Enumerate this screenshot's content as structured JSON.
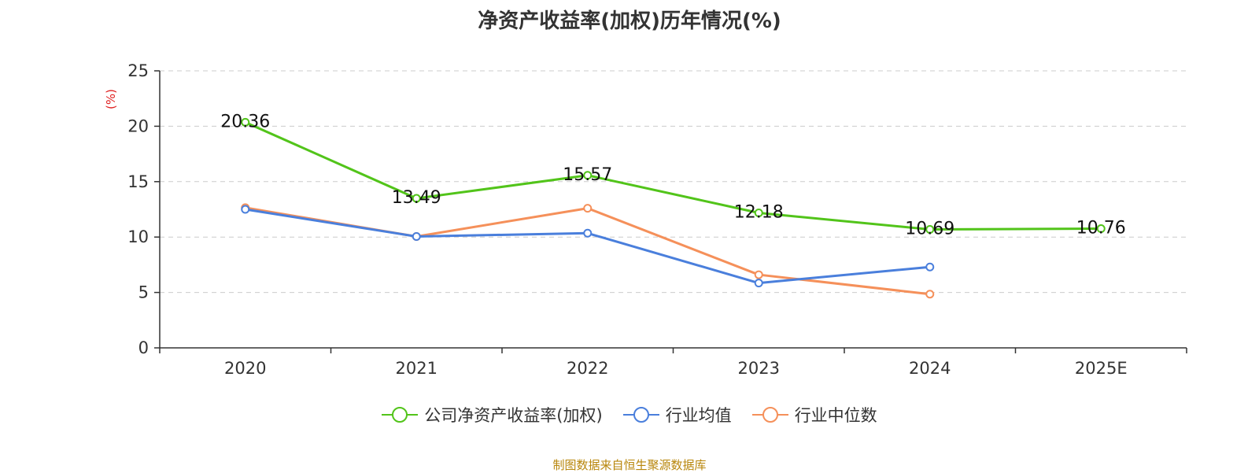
{
  "chart_data": {
    "type": "line",
    "title": "净资产收益率(加权)历年情况(%)",
    "ylabel": "(%)",
    "xlabel": "",
    "categories": [
      "2020",
      "2021",
      "2022",
      "2023",
      "2024",
      "2025E"
    ],
    "ylim": [
      0,
      25
    ],
    "yticks": [
      0,
      5,
      10,
      15,
      20,
      25
    ],
    "grid": true,
    "legend_position": "bottom",
    "series": [
      {
        "name": "公司净资产收益率(加权)",
        "color": "#52c41a",
        "values": [
          20.36,
          13.49,
          15.57,
          12.18,
          10.69,
          10.76
        ],
        "show_labels": true
      },
      {
        "name": "行业均值",
        "color": "#4a7fdc",
        "values": [
          12.5,
          10.05,
          10.35,
          5.85,
          7.3,
          null
        ],
        "show_labels": false
      },
      {
        "name": "行业中位数",
        "color": "#f5905a",
        "values": [
          12.65,
          10.05,
          12.6,
          6.6,
          4.85,
          null
        ],
        "show_labels": false
      }
    ]
  },
  "footer": "制图数据来自恒生聚源数据库"
}
